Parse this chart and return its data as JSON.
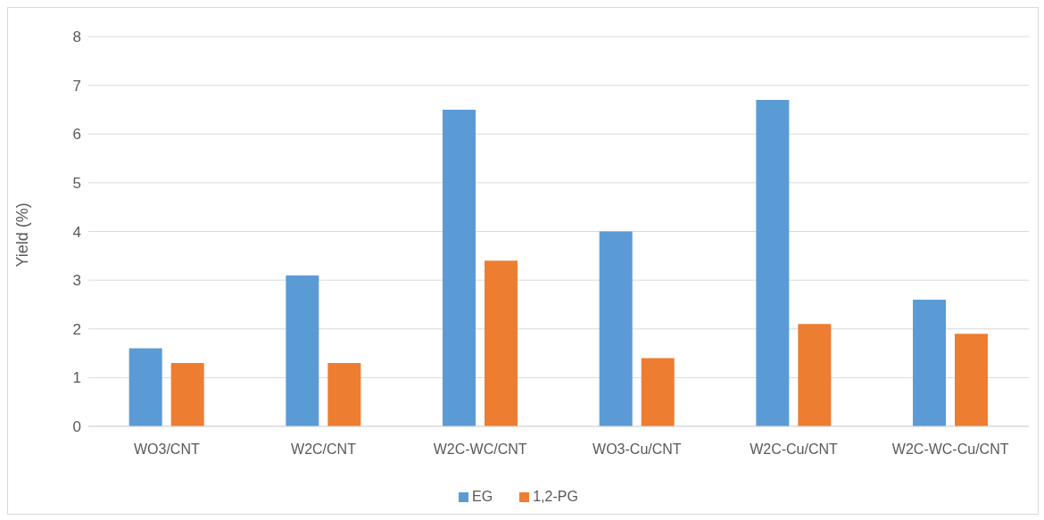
{
  "chart_data": {
    "type": "bar",
    "ylabel": "Yield (%)",
    "categories": [
      "WO3/CNT",
      "W2C/CNT",
      "W2C-WC/CNT",
      "WO3-Cu/CNT",
      "W2C-Cu/CNT",
      "W2C-WC-Cu/CNT"
    ],
    "series": [
      {
        "name": "EG",
        "color": "#5b9bd5",
        "values": [
          1.6,
          3.1,
          6.5,
          4.0,
          6.7,
          2.6
        ]
      },
      {
        "name": "1,2-PG",
        "color": "#ed7d31",
        "values": [
          1.3,
          1.3,
          3.4,
          1.4,
          2.1,
          1.9
        ]
      }
    ],
    "ylim": [
      0,
      8
    ],
    "yticks": [
      0,
      1,
      2,
      3,
      4,
      5,
      6,
      7,
      8
    ],
    "grid": "y",
    "legend": "bottom"
  }
}
